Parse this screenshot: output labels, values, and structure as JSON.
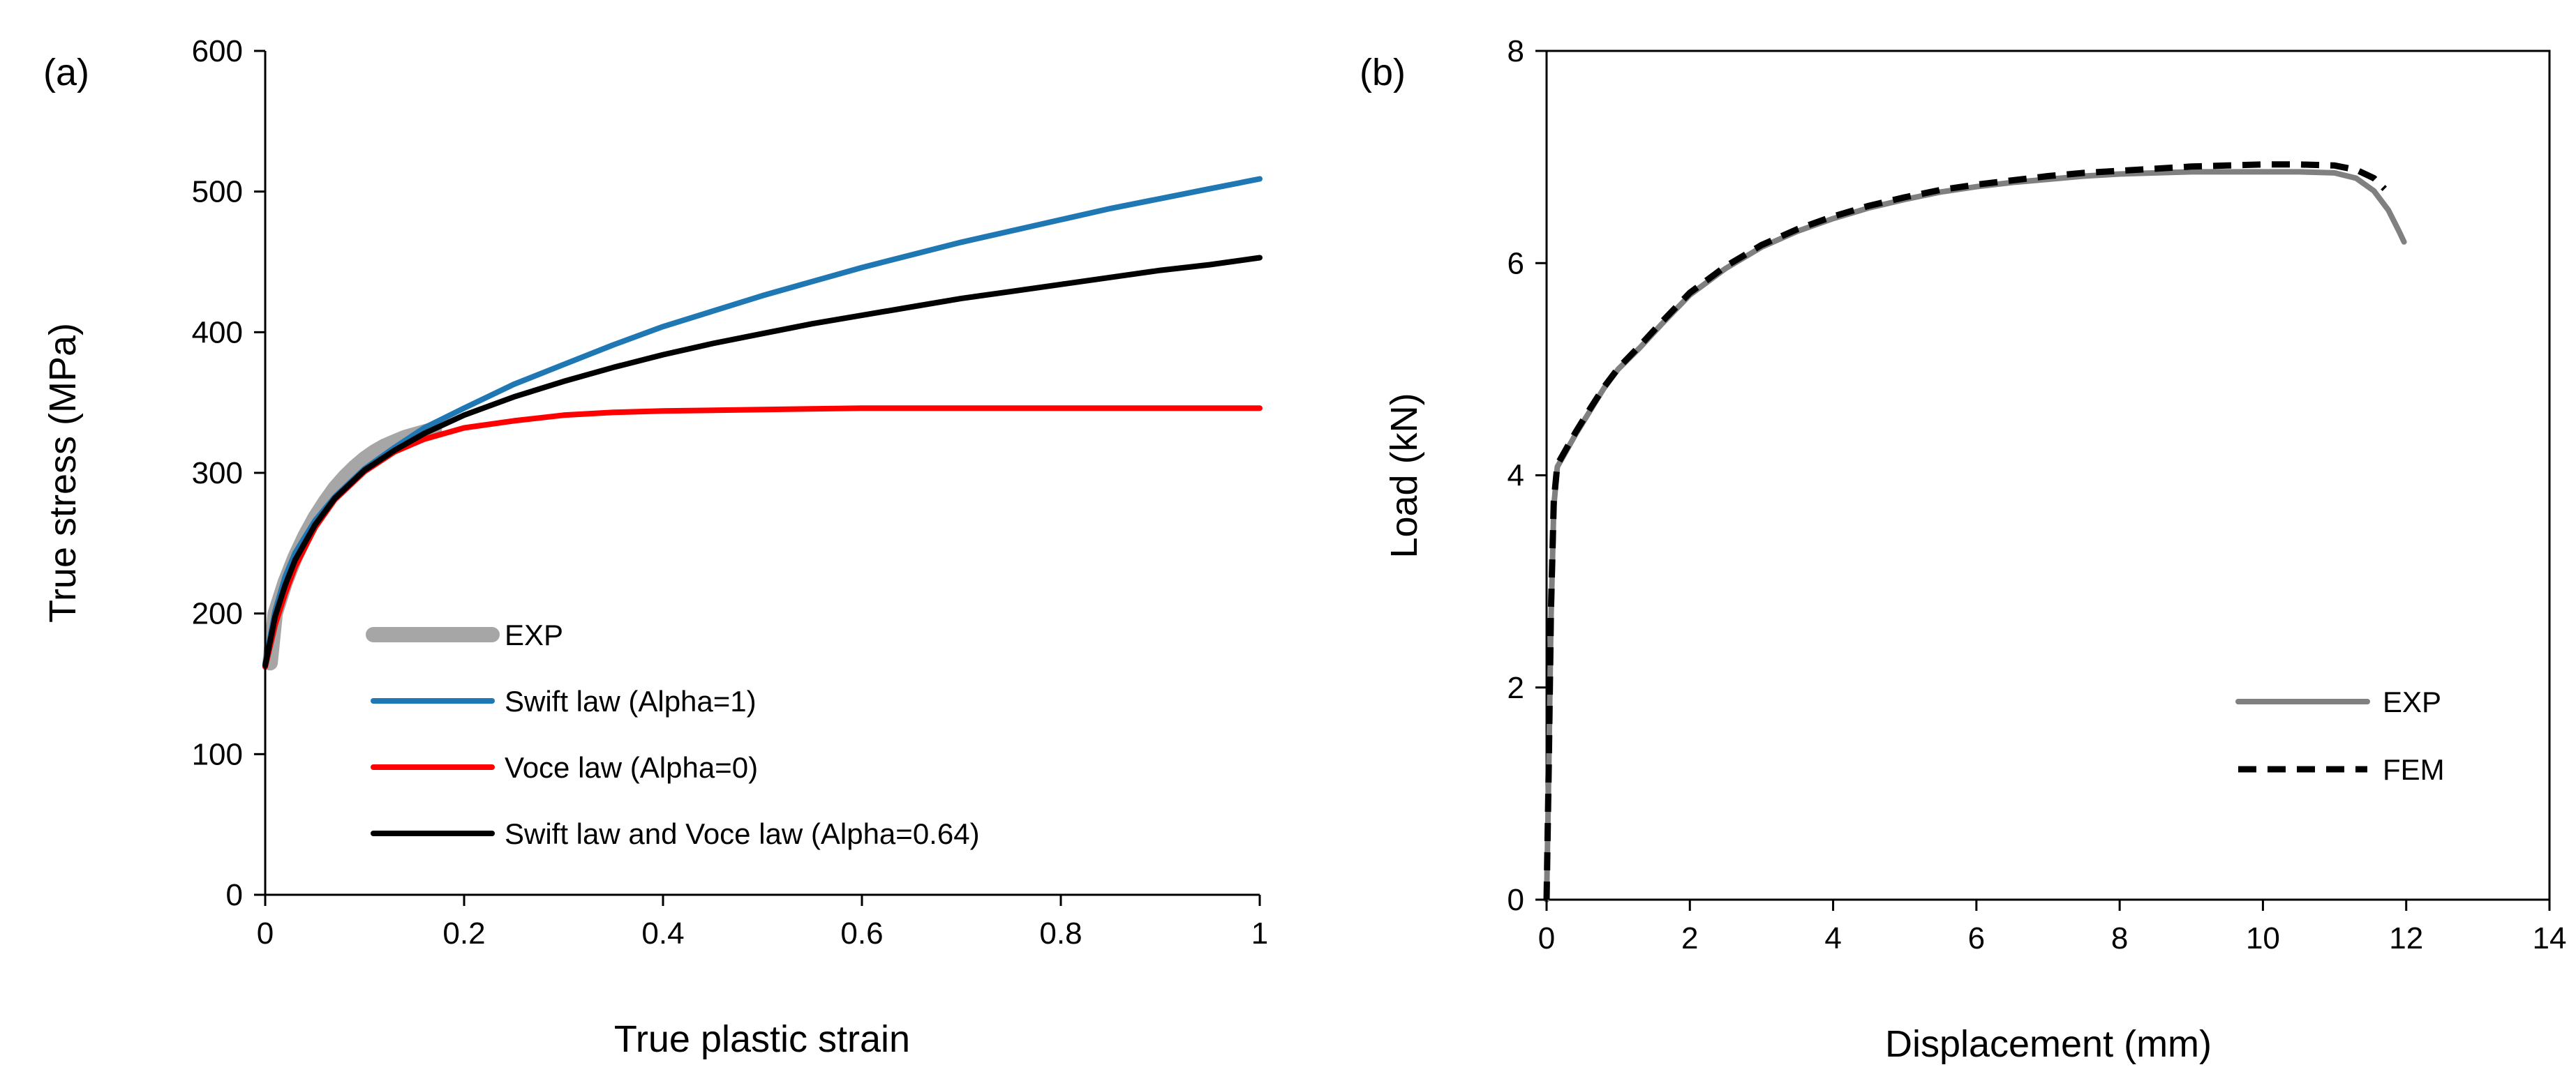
{
  "chart_data": [
    {
      "type": "line",
      "panel_label": "(a)",
      "xlabel": "True plastic strain",
      "ylabel": "True stress (MPa)",
      "xlim": [
        0,
        1
      ],
      "ylim": [
        0,
        600
      ],
      "xticks": [
        0,
        0.2,
        0.4,
        0.6,
        0.8,
        1
      ],
      "xtick_labels": [
        "0",
        "0.2",
        "0.4",
        "0.6",
        "0.8",
        "1"
      ],
      "yticks": [
        0,
        100,
        200,
        300,
        400,
        500,
        600
      ],
      "ytick_labels": [
        "0",
        "100",
        "200",
        "300",
        "400",
        "500",
        "600"
      ],
      "grid": false,
      "legend_position": "bottom-center",
      "series": [
        {
          "name": "EXP",
          "color": "#a6a6a6",
          "style": "thick",
          "x": [
            0.005,
            0.01,
            0.02,
            0.03,
            0.04,
            0.05,
            0.06,
            0.07,
            0.08,
            0.09,
            0.1,
            0.11,
            0.12,
            0.13,
            0.14,
            0.15,
            0.16,
            0.17
          ],
          "y": [
            165,
            200,
            222,
            240,
            255,
            268,
            279,
            289,
            297,
            304,
            310,
            315,
            319,
            322,
            325,
            327,
            329,
            331
          ]
        },
        {
          "name": "Swift law (Alpha=1)",
          "color": "#1f78b4",
          "style": "solid",
          "x": [
            0,
            0.01,
            0.02,
            0.03,
            0.05,
            0.07,
            0.1,
            0.13,
            0.16,
            0.2,
            0.25,
            0.3,
            0.35,
            0.4,
            0.45,
            0.5,
            0.55,
            0.6,
            0.65,
            0.7,
            0.75,
            0.8,
            0.85,
            0.9,
            0.95,
            1.0
          ],
          "y": [
            164,
            202,
            226,
            243,
            266,
            283,
            303,
            318,
            332,
            346,
            363,
            377,
            391,
            404,
            415,
            426,
            436,
            446,
            455,
            464,
            472,
            480,
            488,
            495,
            502,
            509
          ]
        },
        {
          "name": "Voce law (Alpha=0)",
          "color": "#ff0000",
          "style": "solid",
          "x": [
            0,
            0.01,
            0.02,
            0.03,
            0.05,
            0.07,
            0.1,
            0.13,
            0.16,
            0.2,
            0.25,
            0.3,
            0.35,
            0.4,
            0.5,
            0.6,
            0.7,
            0.8,
            0.9,
            1.0
          ],
          "y": [
            162,
            192,
            214,
            233,
            261,
            281,
            301,
            315,
            324,
            332,
            337,
            341,
            343,
            344,
            345,
            346,
            346,
            346,
            346,
            346
          ]
        },
        {
          "name": "Swift law and Voce law (Alpha=0.64)",
          "color": "#000000",
          "style": "solid",
          "x": [
            0,
            0.01,
            0.02,
            0.03,
            0.05,
            0.07,
            0.1,
            0.13,
            0.16,
            0.2,
            0.25,
            0.3,
            0.35,
            0.4,
            0.45,
            0.5,
            0.55,
            0.6,
            0.65,
            0.7,
            0.75,
            0.8,
            0.85,
            0.9,
            0.95,
            1.0
          ],
          "y": [
            163,
            198,
            220,
            238,
            263,
            282,
            302,
            316,
            328,
            341,
            354,
            365,
            375,
            384,
            392,
            399,
            406,
            412,
            418,
            424,
            429,
            434,
            439,
            444,
            448,
            453
          ]
        }
      ]
    },
    {
      "type": "line",
      "panel_label": "(b)",
      "xlabel": "Displacement (mm)",
      "ylabel": "Load (kN)",
      "xlim": [
        0,
        14
      ],
      "ylim": [
        0,
        8
      ],
      "xticks": [
        0,
        2,
        4,
        6,
        8,
        10,
        12,
        14
      ],
      "xtick_labels": [
        "0",
        "2",
        "4",
        "6",
        "8",
        "10",
        "12",
        "14"
      ],
      "yticks": [
        0,
        2,
        4,
        6,
        8
      ],
      "ytick_labels": [
        "0",
        "2",
        "4",
        "6",
        "8"
      ],
      "grid": false,
      "legend_position": "bottom-right",
      "series": [
        {
          "name": "EXP",
          "color": "#808080",
          "style": "solid",
          "x": [
            0,
            0.03,
            0.06,
            0.1,
            0.15,
            0.25,
            0.4,
            0.6,
            0.8,
            1.0,
            1.3,
            1.6,
            2.0,
            2.5,
            3.0,
            3.5,
            4.0,
            4.5,
            5.0,
            5.5,
            6.0,
            6.5,
            7.0,
            7.5,
            8.0,
            8.5,
            9.0,
            9.5,
            10.0,
            10.5,
            11.0,
            11.3,
            11.55,
            11.75,
            11.9,
            11.97
          ],
          "y": [
            0,
            1.2,
            2.6,
            3.7,
            4.08,
            4.2,
            4.38,
            4.6,
            4.82,
            5.0,
            5.2,
            5.42,
            5.7,
            5.95,
            6.15,
            6.3,
            6.42,
            6.52,
            6.6,
            6.67,
            6.72,
            6.76,
            6.79,
            6.82,
            6.84,
            6.85,
            6.86,
            6.86,
            6.86,
            6.86,
            6.85,
            6.8,
            6.68,
            6.5,
            6.3,
            6.2
          ]
        },
        {
          "name": "FEM",
          "color": "#000000",
          "style": "dashed",
          "x": [
            0,
            0.03,
            0.06,
            0.1,
            0.15,
            0.25,
            0.4,
            0.6,
            0.8,
            1.0,
            1.3,
            1.6,
            2.0,
            2.5,
            3.0,
            3.5,
            4.0,
            4.5,
            5.0,
            5.5,
            6.0,
            6.5,
            7.0,
            7.5,
            8.0,
            8.5,
            9.0,
            9.5,
            10.0,
            10.5,
            11.0,
            11.3,
            11.55,
            11.7
          ],
          "y": [
            0,
            1.25,
            2.7,
            3.75,
            4.1,
            4.22,
            4.4,
            4.62,
            4.83,
            5.01,
            5.22,
            5.44,
            5.72,
            5.97,
            6.17,
            6.32,
            6.44,
            6.54,
            6.62,
            6.69,
            6.74,
            6.78,
            6.82,
            6.85,
            6.87,
            6.89,
            6.91,
            6.92,
            6.93,
            6.93,
            6.92,
            6.88,
            6.8,
            6.7
          ]
        }
      ]
    }
  ]
}
